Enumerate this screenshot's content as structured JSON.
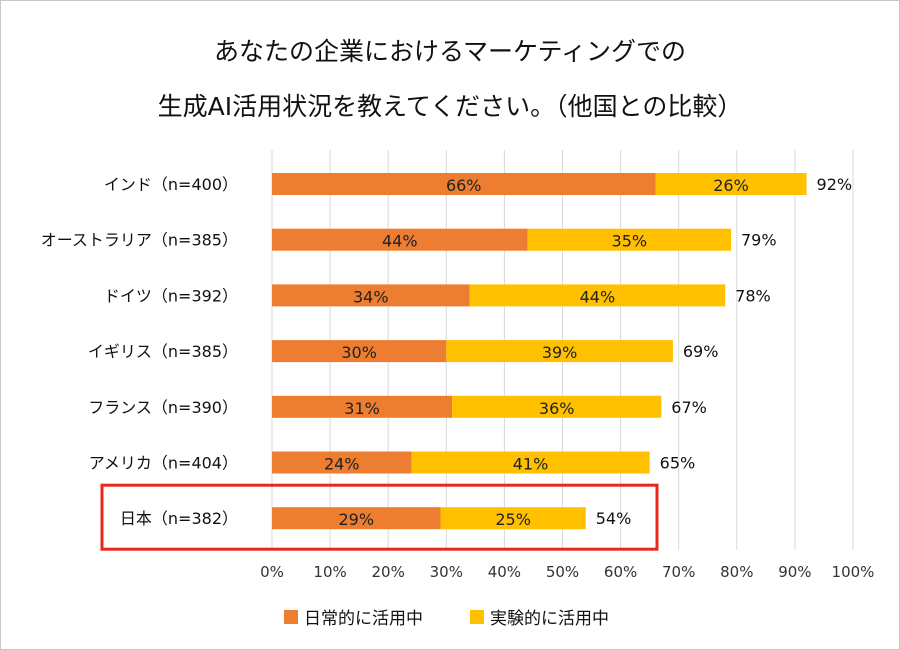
{
  "chart_data": {
    "type": "bar",
    "orientation": "horizontal",
    "stacked": true,
    "title": [
      "あなたの企業におけるマーケティングでの",
      "生成AI活用状況を教えてください。（他国との比較）"
    ],
    "categories": [
      "インド（n=400）",
      "オーストラリア（n=385）",
      "ドイツ（n=392）",
      "イギリス（n=385）",
      "フランス（n=390）",
      "アメリカ（n=404）",
      "日本（n=382）"
    ],
    "series": [
      {
        "name": "日常的に活用中",
        "color": "#ED7D31",
        "values": [
          66,
          44,
          34,
          30,
          31,
          24,
          29
        ],
        "labels": [
          "66%",
          "44%",
          "34%",
          "30%",
          "31%",
          "24%",
          "29%"
        ]
      },
      {
        "name": "実験的に活用中",
        "color": "#FFC000",
        "values": [
          26,
          35,
          44,
          39,
          36,
          41,
          25
        ],
        "labels": [
          "26%",
          "35%",
          "44%",
          "39%",
          "36%",
          "41%",
          "25%"
        ]
      }
    ],
    "totals": [
      "92%",
      "79%",
      "78%",
      "69%",
      "67%",
      "65%",
      "54%"
    ],
    "xlim": [
      0,
      100
    ],
    "xticks": [
      "0%",
      "10%",
      "20%",
      "30%",
      "40%",
      "50%",
      "60%",
      "70%",
      "80%",
      "90%",
      "100%"
    ],
    "grid": true,
    "legend_position": "bottom",
    "highlight": {
      "category": "日本（n=382）",
      "color": "#E8281E"
    }
  }
}
